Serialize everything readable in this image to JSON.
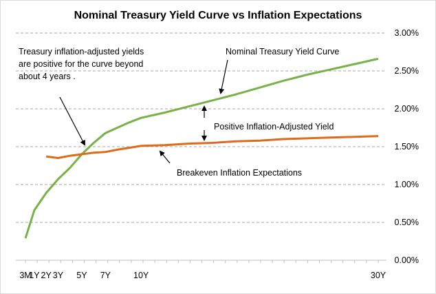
{
  "chart_data": {
    "type": "line",
    "title": "Nominal Treasury Yield Curve  vs Inflation Expectations",
    "y_axis": {
      "position": "right",
      "min": 0,
      "max": 3,
      "step": 0.5,
      "tick_labels": [
        "0.00%",
        "0.50%",
        "1.00%",
        "1.50%",
        "2.00%",
        "2.50%",
        "3.00%"
      ]
    },
    "x_axis": {
      "min": 0.25,
      "max": 30,
      "unit": "years",
      "ticks": [
        {
          "label": "3M",
          "value": 0.25
        },
        {
          "label": "1Y",
          "value": 1
        },
        {
          "label": "2Y",
          "value": 2
        },
        {
          "label": "3Y",
          "value": 3
        },
        {
          "label": "5Y",
          "value": 5
        },
        {
          "label": "7Y",
          "value": 7
        },
        {
          "label": "10Y",
          "value": 10
        },
        {
          "label": "30Y",
          "value": 30
        }
      ]
    },
    "grid": "horizontal dashed",
    "series": [
      {
        "name": "Nominal Treasury Yield Curve",
        "color": "#77b148",
        "x": [
          0.25,
          1,
          2,
          3,
          4,
          5,
          6,
          7,
          8,
          9,
          10,
          12,
          14,
          16,
          18,
          20,
          22,
          24,
          26,
          28,
          30
        ],
        "y": [
          0.29,
          0.66,
          0.89,
          1.07,
          1.22,
          1.4,
          1.55,
          1.68,
          1.75,
          1.82,
          1.88,
          1.95,
          2.03,
          2.11,
          2.19,
          2.28,
          2.37,
          2.45,
          2.52,
          2.59,
          2.66
        ]
      },
      {
        "name": "Breakeven Inflation Expectations",
        "color": "#e06a1b",
        "x": [
          2,
          3,
          4,
          5,
          6,
          7,
          8,
          10,
          12,
          14,
          16,
          18,
          20,
          22,
          24,
          26,
          28,
          30
        ],
        "y": [
          1.37,
          1.35,
          1.38,
          1.4,
          1.42,
          1.43,
          1.46,
          1.51,
          1.52,
          1.54,
          1.55,
          1.57,
          1.58,
          1.6,
          1.61,
          1.62,
          1.63,
          1.64
        ]
      }
    ],
    "annotations": [
      {
        "text": "Treasury inflation-adjusted  yields",
        "target": "crossover"
      },
      {
        "text": "are positive for the curve beyond",
        "target": "crossover"
      },
      {
        "text": "about 4 years .",
        "target": "crossover"
      },
      {
        "text": "Nominal  Treasury Yield Curve",
        "target": "nominal"
      },
      {
        "text": "Positive Inflation-Adjusted Yield",
        "target": "gap"
      },
      {
        "text": "Breakeven Inflation Expectations",
        "target": "breakeven"
      }
    ]
  }
}
